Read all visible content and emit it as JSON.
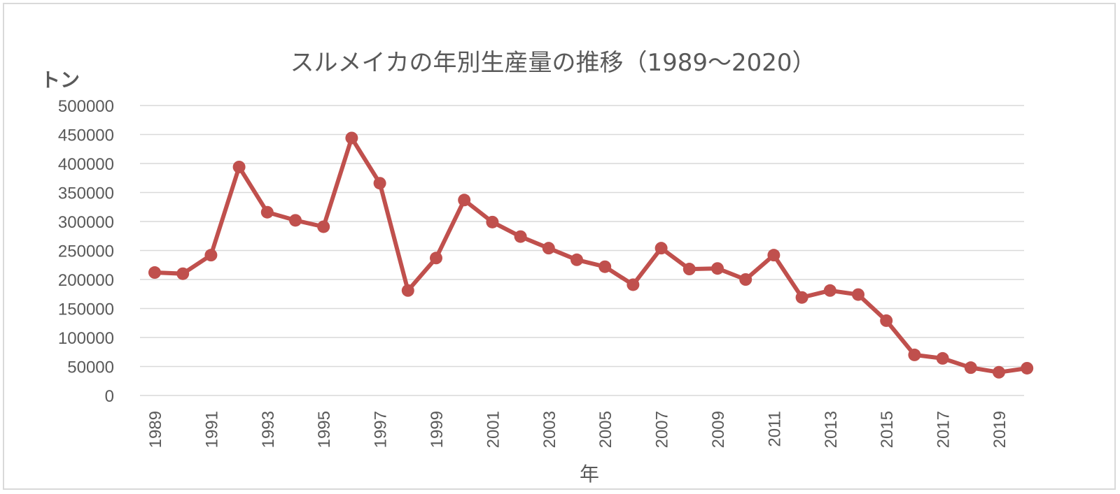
{
  "chart_data": {
    "type": "line",
    "title": "スルメイカの年別生産量の推移（1989～2020）",
    "ylabel": "トン",
    "xlabel": "年",
    "ylim": [
      0,
      500000
    ],
    "yticks": [
      0,
      50000,
      100000,
      150000,
      200000,
      250000,
      300000,
      350000,
      400000,
      450000,
      500000
    ],
    "x_tick_labels": [
      "1989",
      "1991",
      "1993",
      "1995",
      "1997",
      "1999",
      "2001",
      "2003",
      "2005",
      "2007",
      "2009",
      "2011",
      "2013",
      "2015",
      "2017",
      "2019"
    ],
    "grid": true,
    "legend": false,
    "line_color": "#c0504d",
    "x": [
      1989,
      1990,
      1991,
      1992,
      1993,
      1994,
      1995,
      1996,
      1997,
      1998,
      1999,
      2000,
      2001,
      2002,
      2003,
      2004,
      2005,
      2006,
      2007,
      2008,
      2009,
      2010,
      2011,
      2012,
      2013,
      2014,
      2015,
      2016,
      2017,
      2018,
      2019,
      2020
    ],
    "series": [
      {
        "values": [
          212000,
          210000,
          242000,
          394000,
          316000,
          302000,
          291000,
          444000,
          366000,
          181000,
          237000,
          337000,
          299000,
          274000,
          254000,
          234000,
          222000,
          191000,
          254000,
          218000,
          219000,
          200000,
          242000,
          169000,
          181000,
          174000,
          129000,
          70000,
          64000,
          48000,
          40000,
          47000
        ]
      }
    ]
  }
}
